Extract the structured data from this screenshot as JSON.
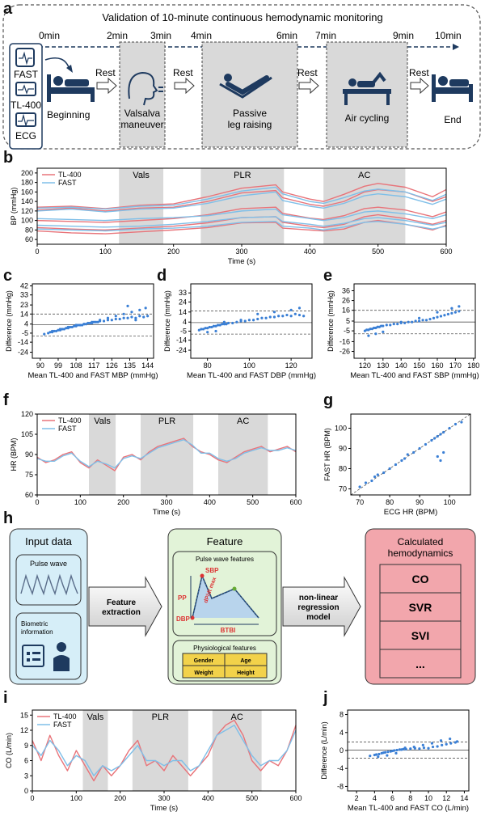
{
  "panels": {
    "a": "a",
    "b": "b",
    "c": "c",
    "d": "d",
    "e": "e",
    "f": "f",
    "g": "g",
    "h": "h",
    "i": "i",
    "j": "j"
  },
  "panel_a": {
    "title": "Validation of 10-minute continuous hemodynamic monitoring",
    "time_marks": [
      "0min",
      "2min",
      "3min",
      "4min",
      "6min",
      "7min",
      "9min",
      "10min"
    ],
    "devices": [
      "FAST",
      "TL-400",
      "ECG"
    ],
    "stages": [
      "Beginning",
      "Valsalva maneuver",
      "Passive leg raising",
      "Air cycling",
      "End"
    ],
    "rest_label": "Rest",
    "colors": {
      "shade": "#d9d9d9",
      "icon": "#1e3a5f"
    }
  },
  "chart_data": [
    {
      "id": "b",
      "type": "line",
      "xlabel": "Time (s)",
      "ylabel": "BP (mmHg)",
      "xlim": [
        0,
        600
      ],
      "ylim": [
        50,
        210
      ],
      "xticks": [
        0,
        100,
        200,
        300,
        400,
        500,
        600
      ],
      "yticks": [
        60,
        80,
        100,
        120,
        140,
        160,
        180,
        200
      ],
      "shaded": [
        {
          "label": "Vals",
          "x0": 120,
          "x1": 185
        },
        {
          "label": "PLR",
          "x0": 240,
          "x1": 362
        },
        {
          "label": "AC",
          "x0": 420,
          "x1": 540
        }
      ],
      "legend": [
        "TL-400",
        "FAST"
      ],
      "legend_position": "top-left",
      "colors": {
        "TL-400": "#e8747a",
        "FAST": "#7fbfe8"
      },
      "x": [
        0,
        50,
        100,
        150,
        200,
        250,
        300,
        350,
        360,
        400,
        420,
        450,
        480,
        500,
        540,
        580,
        600
      ],
      "series": [
        {
          "name": "TL-400",
          "band": "SBP+",
          "values": [
            128,
            130,
            125,
            132,
            135,
            150,
            168,
            175,
            160,
            145,
            140,
            155,
            172,
            178,
            170,
            150,
            165
          ]
        },
        {
          "name": "TL-400",
          "band": "SBP",
          "values": [
            122,
            126,
            120,
            126,
            128,
            140,
            158,
            163,
            148,
            134,
            130,
            140,
            160,
            165,
            160,
            140,
            150
          ]
        },
        {
          "name": "TL-400",
          "band": "MBP",
          "values": [
            100,
            98,
            96,
            100,
            104,
            112,
            125,
            128,
            115,
            105,
            102,
            110,
            125,
            128,
            122,
            108,
            118
          ]
        },
        {
          "name": "TL-400",
          "band": "DBP",
          "values": [
            85,
            82,
            80,
            84,
            88,
            95,
            106,
            108,
            96,
            88,
            85,
            92,
            108,
            112,
            104,
            92,
            100
          ]
        },
        {
          "name": "TL-400",
          "band": "DBP-",
          "values": [
            78,
            74,
            72,
            76,
            80,
            85,
            95,
            96,
            84,
            80,
            78,
            82,
            96,
            100,
            92,
            80,
            90
          ]
        },
        {
          "name": "FAST",
          "band": "SBP+",
          "values": [
            126,
            128,
            124,
            130,
            132,
            145,
            162,
            170,
            156,
            140,
            136,
            148,
            162,
            166,
            160,
            142,
            155
          ]
        },
        {
          "name": "FAST",
          "band": "SBP",
          "values": [
            120,
            124,
            118,
            124,
            126,
            136,
            152,
            160,
            142,
            130,
            126,
            136,
            152,
            156,
            150,
            134,
            145
          ]
        },
        {
          "name": "FAST",
          "band": "MBP",
          "values": [
            104,
            102,
            100,
            104,
            106,
            110,
            120,
            124,
            112,
            104,
            100,
            106,
            118,
            120,
            114,
            104,
            112
          ]
        },
        {
          "name": "FAST",
          "band": "DBP",
          "values": [
            90,
            88,
            86,
            88,
            92,
            98,
            106,
            108,
            98,
            92,
            88,
            94,
            104,
            106,
            100,
            90,
            96
          ]
        },
        {
          "name": "FAST",
          "band": "DBP-",
          "values": [
            82,
            80,
            78,
            82,
            84,
            88,
            96,
            98,
            88,
            84,
            80,
            86,
            96,
            98,
            92,
            82,
            88
          ]
        }
      ]
    },
    {
      "id": "c",
      "type": "scatter",
      "xlabel": "Mean TL-400 and FAST MBP (mmHg)",
      "ylabel": "Difference (mmHg)",
      "xlim": [
        86,
        147
      ],
      "ylim": [
        -30,
        44
      ],
      "xticks": [
        90,
        99,
        108,
        117,
        126,
        135,
        144
      ],
      "yticks": [
        -24,
        -14,
        -5,
        4,
        14,
        23,
        33,
        42
      ],
      "mean": 3.5,
      "upper": 14,
      "lower": -8,
      "color": "#3a7fd5",
      "x": [
        92,
        94,
        95,
        96,
        97,
        98,
        99,
        100,
        101,
        102,
        103,
        104,
        105,
        106,
        107,
        108,
        109,
        110,
        111,
        112,
        113,
        114,
        115,
        116,
        117,
        118,
        119,
        120,
        122,
        124,
        126,
        128,
        130,
        132,
        134,
        136,
        138,
        140,
        142,
        144,
        96,
        100,
        104,
        108,
        112,
        116,
        120,
        124,
        128,
        132,
        136,
        140,
        143,
        134,
        138
      ],
      "y": [
        -6,
        -5,
        -4,
        -4,
        -3,
        -3,
        -2,
        -2,
        -1,
        -1,
        0,
        0,
        1,
        1,
        2,
        2,
        3,
        3,
        3,
        4,
        4,
        5,
        5,
        5,
        6,
        6,
        6,
        7,
        7,
        8,
        8,
        9,
        9,
        10,
        10,
        11,
        10,
        12,
        11,
        12,
        -3,
        -1,
        1,
        3,
        4,
        6,
        8,
        10,
        12,
        14,
        16,
        18,
        20,
        22,
        8
      ],
      "note": "approximate cloud"
    },
    {
      "id": "d",
      "type": "scatter",
      "xlabel": "Mean TL-400 and FAST DBP (mmHg)",
      "ylabel": "Difference (mmHg)",
      "xlim": [
        72,
        130
      ],
      "ylim": [
        -32,
        42
      ],
      "xticks": [
        80,
        100,
        120
      ],
      "yticks": [
        -24,
        -14,
        -5,
        4,
        14,
        24,
        33
      ],
      "mean": 3.5,
      "upper": 15,
      "lower": -8,
      "color": "#3a7fd5",
      "x": [
        76,
        77,
        78,
        79,
        80,
        81,
        82,
        83,
        84,
        85,
        86,
        87,
        88,
        89,
        90,
        92,
        94,
        96,
        98,
        100,
        102,
        104,
        106,
        108,
        110,
        112,
        114,
        116,
        118,
        120,
        122,
        124,
        126,
        80,
        84,
        88,
        96,
        104,
        112,
        120,
        124
      ],
      "y": [
        -4,
        -3,
        -3,
        -2,
        -2,
        -1,
        -1,
        0,
        0,
        1,
        1,
        2,
        2,
        2,
        3,
        3,
        4,
        5,
        5,
        6,
        6,
        7,
        8,
        8,
        9,
        9,
        10,
        10,
        11,
        10,
        12,
        11,
        10,
        -6,
        -5,
        4,
        6,
        12,
        14,
        16,
        18
      ],
      "note": "approximate cloud"
    },
    {
      "id": "e",
      "type": "scatter",
      "xlabel": "Mean TL-400 and FAST SBP (mmHg)",
      "ylabel": "Difference (mmHg)",
      "xlim": [
        114,
        181
      ],
      "ylim": [
        -33,
        43
      ],
      "xticks": [
        120,
        130,
        140,
        150,
        160,
        170,
        180
      ],
      "yticks": [
        -26,
        -16,
        -5,
        5,
        16,
        26,
        36
      ],
      "mean": 4,
      "upper": 16,
      "lower": -8,
      "color": "#3a7fd5",
      "x": [
        120,
        121,
        122,
        123,
        124,
        125,
        126,
        127,
        128,
        129,
        130,
        132,
        134,
        136,
        138,
        140,
        142,
        144,
        146,
        148,
        150,
        152,
        154,
        156,
        158,
        160,
        162,
        164,
        166,
        168,
        170,
        172,
        122,
        126,
        130,
        140,
        150,
        160,
        168,
        172
      ],
      "y": [
        -5,
        -4,
        -4,
        -3,
        -3,
        -2,
        -2,
        -1,
        -1,
        0,
        0,
        1,
        1,
        2,
        2,
        3,
        3,
        4,
        4,
        5,
        5,
        6,
        6,
        7,
        8,
        9,
        10,
        11,
        12,
        13,
        14,
        15,
        -10,
        -8,
        -6,
        4,
        8,
        14,
        18,
        20
      ],
      "note": "approximate cloud"
    },
    {
      "id": "f",
      "type": "line",
      "xlabel": "Time (s)",
      "ylabel": "HR (BPM)",
      "xlim": [
        0,
        600
      ],
      "ylim": [
        60,
        120
      ],
      "xticks": [
        0,
        100,
        200,
        300,
        400,
        500,
        600
      ],
      "yticks": [
        60,
        75,
        90,
        105,
        120
      ],
      "shaded": [
        {
          "label": "Vals",
          "x0": 120,
          "x1": 182
        },
        {
          "label": "PLR",
          "x0": 240,
          "x1": 362
        },
        {
          "label": "AC",
          "x0": 420,
          "x1": 535
        }
      ],
      "legend": [
        "TL-400",
        "FAST"
      ],
      "legend_position": "top-left",
      "colors": {
        "TL-400": "#e8747a",
        "FAST": "#7fbfe8"
      },
      "x": [
        0,
        20,
        40,
        60,
        80,
        100,
        120,
        140,
        160,
        180,
        200,
        220,
        240,
        260,
        280,
        300,
        320,
        340,
        360,
        380,
        400,
        420,
        440,
        460,
        480,
        500,
        520,
        540,
        560,
        580,
        600
      ],
      "series": [
        {
          "name": "TL-400",
          "values": [
            88,
            84,
            86,
            90,
            92,
            84,
            80,
            86,
            82,
            78,
            88,
            90,
            86,
            92,
            96,
            98,
            100,
            102,
            96,
            92,
            90,
            86,
            84,
            88,
            92,
            94,
            96,
            92,
            94,
            96,
            92
          ]
        },
        {
          "name": "FAST",
          "values": [
            87,
            85,
            85,
            89,
            91,
            85,
            81,
            85,
            83,
            80,
            87,
            89,
            87,
            91,
            95,
            97,
            99,
            101,
            97,
            91,
            91,
            87,
            85,
            87,
            91,
            93,
            95,
            93,
            93,
            95,
            93
          ]
        }
      ]
    },
    {
      "id": "g",
      "type": "scatter",
      "xlabel": "ECG HR (BPM)",
      "ylabel": "FAST HR (BPM)",
      "xlim": [
        67,
        107
      ],
      "ylim": [
        67,
        107
      ],
      "xticks": [
        70,
        80,
        90,
        100
      ],
      "yticks": [
        70,
        80,
        90,
        100
      ],
      "identity_line": true,
      "color": "#3a7fd5",
      "x": [
        70,
        72,
        74,
        75,
        76,
        78,
        80,
        82,
        84,
        85,
        86,
        88,
        90,
        92,
        94,
        95,
        96,
        97,
        98,
        100,
        102,
        104,
        96,
        97,
        98
      ],
      "y": [
        71,
        73,
        74,
        76,
        77,
        78,
        80,
        82,
        84,
        85,
        87,
        88,
        90,
        92,
        94,
        95,
        96,
        97,
        98,
        100,
        102,
        103,
        86,
        84,
        88
      ]
    },
    {
      "id": "i",
      "type": "line",
      "xlabel": "Time (s)",
      "ylabel": "CO (L/min)",
      "xlim": [
        0,
        600
      ],
      "ylim": [
        0,
        16
      ],
      "xticks": [
        0,
        100,
        200,
        300,
        400,
        500,
        600
      ],
      "yticks": [
        0,
        3,
        6,
        9,
        12,
        15
      ],
      "shaded": [
        {
          "label": "Vals",
          "x0": 115,
          "x1": 172
        },
        {
          "label": "PLR",
          "x0": 228,
          "x1": 355
        },
        {
          "label": "AC",
          "x0": 410,
          "x1": 522
        }
      ],
      "legend": [
        "TL-400",
        "FAST"
      ],
      "legend_position": "top-left",
      "colors": {
        "TL-400": "#e8747a",
        "FAST": "#7fbfe8"
      },
      "x": [
        0,
        20,
        40,
        60,
        80,
        100,
        120,
        140,
        160,
        180,
        200,
        220,
        240,
        260,
        280,
        300,
        320,
        340,
        360,
        380,
        400,
        420,
        440,
        460,
        480,
        500,
        520,
        540,
        560,
        580,
        600
      ],
      "series": [
        {
          "name": "TL-400",
          "values": [
            10,
            6,
            11,
            7,
            4,
            8,
            5,
            2,
            5,
            3,
            5,
            8,
            10,
            5,
            6,
            4,
            7,
            5,
            3,
            5,
            7,
            11,
            13,
            14,
            11,
            6,
            4,
            6,
            5,
            8,
            13
          ]
        },
        {
          "name": "FAST",
          "values": [
            9,
            7,
            10,
            8,
            5,
            7,
            6,
            3,
            5,
            4,
            5,
            7,
            9,
            6,
            6,
            5,
            6,
            6,
            4,
            5,
            8,
            11,
            12,
            13,
            10,
            7,
            5,
            6,
            6,
            8,
            12
          ]
        }
      ]
    },
    {
      "id": "j",
      "type": "scatter",
      "xlabel": "Mean TL-400 and FAST CO (L/min)",
      "ylabel": "Difference (L/min)",
      "xlim": [
        1,
        14.5
      ],
      "ylim": [
        -9,
        9
      ],
      "xticks": [
        2,
        4,
        6,
        8,
        10,
        12,
        14
      ],
      "yticks": [
        -8,
        -4,
        0,
        4,
        8
      ],
      "mean": 0.1,
      "upper": 1.9,
      "lower": -1.7,
      "color": "#3a7fd5",
      "x": [
        3.5,
        4,
        4.2,
        4.5,
        4.8,
        5,
        5.2,
        5.5,
        5.8,
        6,
        6.2,
        6.5,
        6.8,
        7,
        7.2,
        7.5,
        8,
        8.5,
        9,
        9.5,
        10,
        10.5,
        11,
        11.5,
        12,
        12.5,
        13,
        13.2,
        4.4,
        5.4,
        6.4,
        7.4,
        8.4,
        9.4,
        10.4,
        11.4,
        12.4
      ],
      "y": [
        -1.2,
        -1,
        -0.9,
        -0.8,
        -0.6,
        -0.5,
        -0.4,
        -0.3,
        -0.2,
        -0.1,
        0,
        0.1,
        0.2,
        0.2,
        0.3,
        0.3,
        0.4,
        0.5,
        0.4,
        0.6,
        0.5,
        0.8,
        0.9,
        1.2,
        1.4,
        1.6,
        1.8,
        2,
        -1.4,
        -1.1,
        -0.6,
        0.6,
        0.8,
        1.2,
        1.6,
        2.2,
        2.6
      ]
    }
  ],
  "panel_h": {
    "input_title": "Input data",
    "pulse_wave": "Pulse wave",
    "biometric": "Biometric information",
    "arrow1": "Feature extraction",
    "feature_title": "Feature",
    "pulse_features": "Pulse wave features",
    "sbp": "SBP",
    "dbp": "DBP",
    "pp": "PP",
    "dpmax": "dP/dt max",
    "btbi": "BTBI",
    "physio_features": "Physiological features",
    "physio_cells": [
      "Gender",
      "Age",
      "Weight",
      "Height"
    ],
    "arrow2": "non-linear regression model",
    "calc_title": "Calculated hemodynamics",
    "outputs": [
      "CO",
      "SVR",
      "SVI",
      "..."
    ],
    "colors": {
      "input": "#d6eef8",
      "feature": "#e2f3d8",
      "calc": "#f2a6ac",
      "physio": "#f2d24a",
      "arrow": "#eeeeee"
    }
  }
}
